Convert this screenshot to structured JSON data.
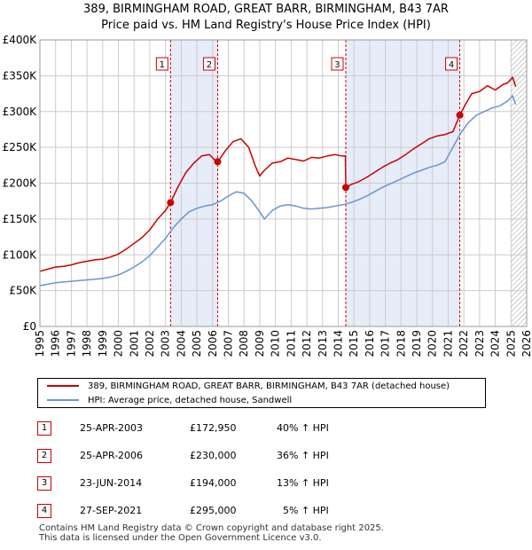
{
  "title_line1": "389, BIRMINGHAM ROAD, GREAT BARR, BIRMINGHAM, B43 7AR",
  "title_line2": "Price paid vs. HM Land Registry's House Price Index (HPI)",
  "colors": {
    "property": "#cc0000",
    "hpi": "#6a95cc",
    "shade": "#e6ecf8",
    "grid": "#cccccc",
    "marker_line": "#cc0000"
  },
  "chart_data": {
    "type": "line",
    "xlim": [
      1995.0,
      2026.0
    ],
    "ylim": [
      0,
      400000
    ],
    "y_ticks": [
      0,
      50000,
      100000,
      150000,
      200000,
      250000,
      300000,
      350000,
      400000
    ],
    "y_tick_labels": [
      "£0",
      "£50K",
      "£100K",
      "£150K",
      "£200K",
      "£250K",
      "£300K",
      "£350K",
      "£400K"
    ],
    "x_tick_labels": [
      "1995",
      "1996",
      "1997",
      "1998",
      "1999",
      "2000",
      "2001",
      "2002",
      "2003",
      "2004",
      "2005",
      "2006",
      "2007",
      "2008",
      "2009",
      "2010",
      "2011",
      "2012",
      "2013",
      "2014",
      "2015",
      "2016",
      "2017",
      "2018",
      "2019",
      "2020",
      "2021",
      "2022",
      "2023",
      "2024",
      "2025",
      "2026"
    ],
    "x_ticks": [
      1995,
      1996,
      1997,
      1998,
      1999,
      2000,
      2001,
      2002,
      2003,
      2004,
      2005,
      2006,
      2007,
      2008,
      2009,
      2010,
      2011,
      2012,
      2013,
      2014,
      2015,
      2016,
      2017,
      2018,
      2019,
      2020,
      2021,
      2022,
      2023,
      2024,
      2025,
      2026
    ],
    "shaded_ranges": [
      [
        2003.32,
        2006.32
      ],
      [
        2014.48,
        2021.74
      ]
    ],
    "hatched_from": 2025.0,
    "series": [
      {
        "name": "389, BIRMINGHAM ROAD, GREAT BARR, BIRMINGHAM, B43 7AR (detached house)",
        "key": "property",
        "x": [
          1995.0,
          1995.5,
          1996.0,
          1996.5,
          1997.0,
          1997.5,
          1998.0,
          1998.5,
          1999.0,
          1999.5,
          2000.0,
          2000.5,
          2001.0,
          2001.5,
          2002.0,
          2002.5,
          2003.0,
          2003.32,
          2003.8,
          2004.3,
          2004.8,
          2005.3,
          2005.8,
          2006.1,
          2006.32,
          2006.8,
          2007.3,
          2007.8,
          2008.3,
          2008.7,
          2009.0,
          2009.3,
          2009.8,
          2010.3,
          2010.8,
          2011.3,
          2011.8,
          2012.3,
          2012.8,
          2013.3,
          2013.8,
          2014.2,
          2014.45,
          2014.48,
          2014.8,
          2015.3,
          2015.8,
          2016.3,
          2016.8,
          2017.3,
          2017.8,
          2018.3,
          2018.8,
          2019.3,
          2019.8,
          2020.3,
          2020.8,
          2021.3,
          2021.74,
          2022.1,
          2022.5,
          2023.0,
          2023.5,
          2024.0,
          2024.5,
          2024.8,
          2025.1,
          2025.3
        ],
        "y": [
          77000,
          80000,
          83000,
          84000,
          86000,
          89000,
          91000,
          93000,
          94000,
          97000,
          101000,
          108000,
          116000,
          124000,
          135000,
          150000,
          162000,
          172950,
          195000,
          215000,
          228000,
          238000,
          240000,
          233000,
          230000,
          245000,
          258000,
          262000,
          250000,
          225000,
          210000,
          218000,
          228000,
          230000,
          235000,
          233000,
          231000,
          236000,
          235000,
          238000,
          240000,
          238000,
          238000,
          194000,
          198000,
          202000,
          208000,
          215000,
          222000,
          228000,
          233000,
          240000,
          248000,
          255000,
          262000,
          266000,
          268000,
          272000,
          295000,
          310000,
          325000,
          328000,
          336000,
          330000,
          338000,
          340000,
          348000,
          335000
        ]
      },
      {
        "name": "HPI: Average price, detached house, Sandwell",
        "key": "hpi",
        "x": [
          1995.0,
          1995.5,
          1996.0,
          1996.5,
          1997.0,
          1997.5,
          1998.0,
          1998.5,
          1999.0,
          1999.5,
          2000.0,
          2000.5,
          2001.0,
          2001.5,
          2002.0,
          2002.5,
          2003.0,
          2003.5,
          2004.0,
          2004.5,
          2005.0,
          2005.5,
          2006.0,
          2006.5,
          2007.0,
          2007.5,
          2008.0,
          2008.5,
          2009.0,
          2009.3,
          2009.8,
          2010.3,
          2010.8,
          2011.3,
          2011.8,
          2012.3,
          2012.8,
          2013.3,
          2013.8,
          2014.3,
          2014.8,
          2015.3,
          2015.8,
          2016.3,
          2016.8,
          2017.3,
          2017.8,
          2018.3,
          2018.8,
          2019.3,
          2019.8,
          2020.3,
          2020.8,
          2021.3,
          2021.8,
          2022.3,
          2022.8,
          2023.3,
          2023.8,
          2024.3,
          2024.8,
          2025.1,
          2025.3
        ],
        "y": [
          57000,
          59000,
          61000,
          62000,
          63000,
          64000,
          65000,
          66000,
          67000,
          69000,
          72000,
          77000,
          83000,
          90000,
          99000,
          111000,
          123000,
          138000,
          150000,
          160000,
          165000,
          168000,
          170000,
          175000,
          182000,
          188000,
          186000,
          175000,
          160000,
          150000,
          162000,
          168000,
          170000,
          168000,
          165000,
          164000,
          165000,
          166000,
          168000,
          170000,
          173000,
          177000,
          182000,
          188000,
          194000,
          199000,
          204000,
          209000,
          214000,
          218000,
          222000,
          225000,
          230000,
          250000,
          270000,
          285000,
          295000,
          300000,
          305000,
          308000,
          315000,
          322000,
          310000
        ]
      }
    ],
    "sales": [
      {
        "label": "1",
        "x": 2003.32,
        "price": 172950
      },
      {
        "label": "2",
        "x": 2006.32,
        "price": 230000
      },
      {
        "label": "3",
        "x": 2014.48,
        "price": 194000
      },
      {
        "label": "4",
        "x": 2021.74,
        "price": 295000
      }
    ]
  },
  "legend": {
    "property": "389, BIRMINGHAM ROAD, GREAT BARR, BIRMINGHAM, B43 7AR (detached house)",
    "hpi": "HPI: Average price, detached house, Sandwell"
  },
  "sales_table": [
    {
      "num": "1",
      "date": "25-APR-2003",
      "price": "£172,950",
      "pct": "40% ↑ HPI"
    },
    {
      "num": "2",
      "date": "25-APR-2006",
      "price": "£230,000",
      "pct": "36% ↑ HPI"
    },
    {
      "num": "3",
      "date": "23-JUN-2014",
      "price": "£194,000",
      "pct": "13% ↑ HPI"
    },
    {
      "num": "4",
      "date": "27-SEP-2021",
      "price": "£295,000",
      "pct": "  5% ↑ HPI"
    }
  ],
  "footer_line1": "Contains HM Land Registry data © Crown copyright and database right 2025.",
  "footer_line2": "This data is licensed under the Open Government Licence v3.0."
}
